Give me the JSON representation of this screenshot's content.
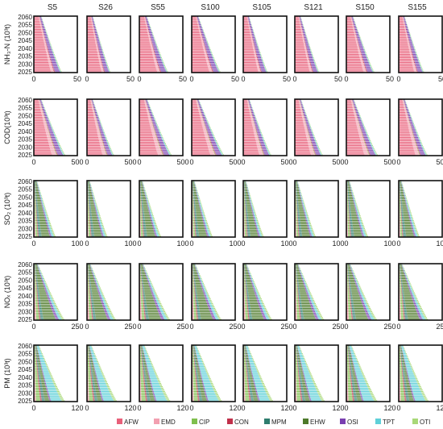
{
  "chart_data": {
    "type": "bar",
    "orientation": "horizontal",
    "stacked": true,
    "scenarios": [
      "S5",
      "S26",
      "S55",
      "S100",
      "S105",
      "S121",
      "S150",
      "S155"
    ],
    "years": [
      2025,
      2026,
      2027,
      2028,
      2029,
      2030,
      2031,
      2032,
      2033,
      2034,
      2035,
      2036,
      2037,
      2038,
      2039,
      2040,
      2041,
      2042,
      2043,
      2044,
      2045,
      2046,
      2047,
      2048,
      2049,
      2050,
      2051,
      2052,
      2053,
      2054,
      2055,
      2056,
      2057,
      2058,
      2059,
      2060
    ],
    "year_tick_labels": [
      "2025",
      "2030",
      "2035",
      "2040",
      "2045",
      "2050",
      "2055",
      "2060"
    ],
    "sectors": [
      {
        "name": "AFW",
        "color": "#e8607a"
      },
      {
        "name": "EMD",
        "color": "#f2a0b0"
      },
      {
        "name": "CIP",
        "color": "#7fbf4d"
      },
      {
        "name": "CON",
        "color": "#c0304a"
      },
      {
        "name": "MPM",
        "color": "#2e7d6e"
      },
      {
        "name": "EHW",
        "color": "#4d7a2a"
      },
      {
        "name": "OSI",
        "color": "#7a3fb0"
      },
      {
        "name": "TPT",
        "color": "#5fd0d8"
      },
      {
        "name": "OTI",
        "color": "#a8d878"
      }
    ],
    "rows": [
      {
        "ylabel": "NH₃-N (10³t)",
        "xlim": [
          0,
          50
        ],
        "x_ticks": [
          "0",
          "50"
        ],
        "totals_2025": [
          32,
          27,
          33,
          33,
          28,
          28,
          32,
          29
        ],
        "totals_2060": [
          9,
          7,
          9,
          8,
          7,
          7,
          8,
          7
        ],
        "shares": [
          0.62,
          0.1,
          0.0,
          0.04,
          0.0,
          0.0,
          0.18,
          0.03,
          0.03
        ]
      },
      {
        "ylabel": "COD(10³t)",
        "xlim": [
          0,
          500
        ],
        "x_ticks": [
          "0",
          "500"
        ],
        "totals_2025": [
          360,
          310,
          370,
          370,
          320,
          320,
          360,
          330
        ],
        "totals_2060": [
          90,
          70,
          95,
          85,
          75,
          75,
          90,
          75
        ],
        "shares": [
          0.58,
          0.14,
          0.02,
          0.03,
          0.0,
          0.0,
          0.16,
          0.04,
          0.03
        ]
      },
      {
        "ylabel": "SO₂ (10³t)",
        "xlim": [
          0,
          100
        ],
        "x_ticks": [
          "0",
          "100"
        ],
        "totals_2025": [
          50,
          47,
          50,
          48,
          47,
          48,
          50,
          48
        ],
        "totals_2060": [
          8,
          7,
          8,
          7,
          7,
          7,
          8,
          7
        ],
        "shares": [
          0.05,
          0.03,
          0.1,
          0.04,
          0.14,
          0.38,
          0.08,
          0.1,
          0.08
        ]
      },
      {
        "ylabel": "NOₓ (10³t)",
        "xlim": [
          0,
          250
        ],
        "x_ticks": [
          "0",
          "250"
        ],
        "totals_2025": [
          175,
          165,
          175,
          170,
          165,
          168,
          175,
          168
        ],
        "totals_2060": [
          25,
          22,
          25,
          23,
          22,
          22,
          25,
          22
        ],
        "shares": [
          0.05,
          0.03,
          0.1,
          0.04,
          0.1,
          0.4,
          0.1,
          0.1,
          0.08
        ]
      },
      {
        "ylabel": "PM (10³t)",
        "xlim": [
          0,
          120
        ],
        "x_ticks": [
          "0",
          "120"
        ],
        "totals_2025": [
          85,
          82,
          85,
          83,
          82,
          82,
          85,
          82
        ],
        "totals_2060": [
          15,
          13,
          15,
          14,
          13,
          13,
          15,
          13
        ],
        "shares": [
          0.04,
          0.03,
          0.14,
          0.05,
          0.1,
          0.15,
          0.05,
          0.34,
          0.1
        ]
      }
    ],
    "legend_position": "bottom"
  }
}
